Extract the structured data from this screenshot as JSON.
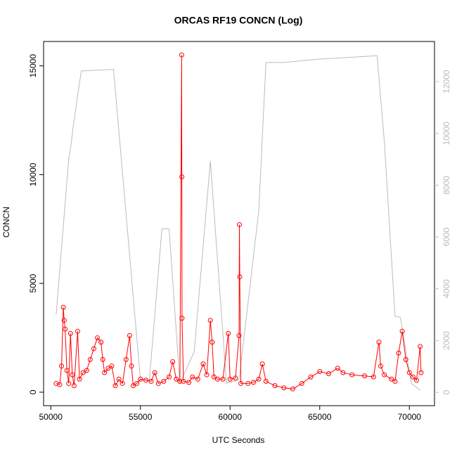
{
  "chart_data": {
    "type": "line",
    "title": "ORCAS RF19 CONCN (Log)",
    "x_label": "UTC Seconds",
    "y_label": "CONCN",
    "xlim": [
      49600,
      71400
    ],
    "xticks": [
      50000,
      55000,
      60000,
      65000,
      70000
    ],
    "ylim": [
      -620,
      16120
    ],
    "yticks": [
      0,
      5000,
      10000,
      15000
    ],
    "y2lim": [
      -515,
      13550
    ],
    "y2ticks": [
      0,
      2000,
      4000,
      6000,
      8000,
      10000,
      12000
    ],
    "y2color": "#bbbbbb",
    "series": [
      {
        "color": "#bbbbbb",
        "axis": "y2",
        "markers": false,
        "x": [
          50300,
          51000,
          51100,
          51300,
          51700,
          53500,
          55000,
          55500,
          56200,
          56600,
          57200,
          58000,
          58900,
          59800,
          60500,
          61600,
          62000,
          63000,
          65000,
          68200,
          68600,
          69200,
          69500,
          70100,
          70600
        ],
        "values": [
          3000,
          9000,
          9430,
          10515,
          12410,
          12470,
          490,
          490,
          6315,
          6315,
          350,
          1570,
          8940,
          350,
          490,
          7000,
          12740,
          12740,
          12870,
          13000,
          9700,
          2930,
          2900,
          350,
          80
        ]
      },
      {
        "color": "#ff0000",
        "markers": true,
        "x": [
          50300,
          50500,
          50600,
          50700,
          50750,
          50800,
          50900,
          51000,
          51100,
          51200,
          51300,
          51500,
          51600,
          51800,
          52000,
          52200,
          52400,
          52600,
          52800,
          52900,
          53000,
          53200,
          53400,
          53600,
          53800,
          54000,
          54200,
          54400,
          54500,
          54600,
          54800,
          55000,
          55300,
          55600,
          55800,
          56000,
          56300,
          56600,
          56800,
          57000,
          57200,
          57300,
          57310,
          57320,
          57400,
          57700,
          57900,
          58200,
          58500,
          58700,
          58900,
          59000,
          59100,
          59300,
          59600,
          59900,
          60000,
          60300,
          60500,
          60520,
          60540,
          60600,
          61000,
          61300,
          61600,
          61800,
          62000,
          62500,
          63000,
          63500,
          64000,
          64500,
          65000,
          65500,
          66000,
          66300,
          66800,
          67500,
          68000,
          68300,
          68400,
          68600,
          69000,
          69200,
          69400,
          69600,
          69800,
          70000,
          70200,
          70400,
          70600,
          70650
        ],
        "values": [
          400,
          350,
          1200,
          3900,
          3300,
          2900,
          1000,
          400,
          2700,
          800,
          300,
          2800,
          600,
          900,
          1000,
          1500,
          2000,
          2500,
          2300,
          1500,
          900,
          1100,
          1200,
          300,
          600,
          400,
          1500,
          2600,
          1200,
          300,
          400,
          600,
          550,
          500,
          900,
          400,
          500,
          700,
          1400,
          600,
          500,
          15500,
          9900,
          3400,
          500,
          450,
          700,
          600,
          1300,
          800,
          3300,
          2300,
          700,
          600,
          600,
          2700,
          600,
          650,
          2600,
          7700,
          5300,
          400,
          400,
          450,
          600,
          1300,
          500,
          300,
          200,
          150,
          400,
          700,
          950,
          850,
          1100,
          900,
          800,
          750,
          700,
          2300,
          1200,
          800,
          600,
          500,
          1800,
          2800,
          1500,
          900,
          700,
          550,
          2100,
          900
        ]
      }
    ]
  }
}
